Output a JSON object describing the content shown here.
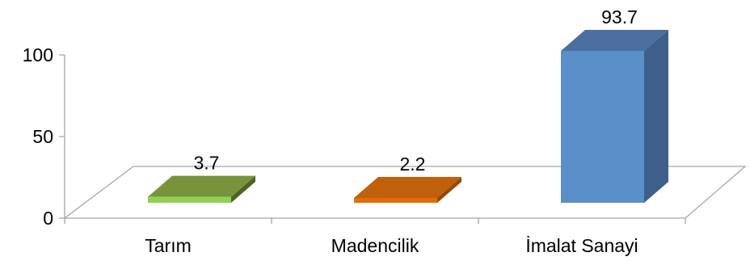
{
  "chart_data": {
    "type": "bar",
    "title": "",
    "xlabel": "",
    "ylabel": "",
    "categories": [
      "Tarım",
      "Madencilik",
      "İmalat Sanayi"
    ],
    "values": [
      3.7,
      2.2,
      93.7
    ],
    "value_labels": [
      "3.7",
      "2.2",
      "93.7"
    ],
    "ylim": [
      0,
      100
    ],
    "yticks": [
      {
        "value": 0,
        "label": "0"
      },
      {
        "value": 50,
        "label": "50"
      },
      {
        "value": 100,
        "label": "100"
      }
    ],
    "grid": false,
    "legend": "none",
    "style": "3d-column",
    "colors": [
      {
        "front": "#92d050",
        "top": "#77933c",
        "side": "#4f6228"
      },
      {
        "front": "#e36c09",
        "top": "#c0600b",
        "side": "#974806"
      },
      {
        "front": "#5b8fc9",
        "top": "#4a6fa0",
        "side": "#3e5f8a"
      }
    ],
    "axis_color": "#a6a6a6"
  }
}
